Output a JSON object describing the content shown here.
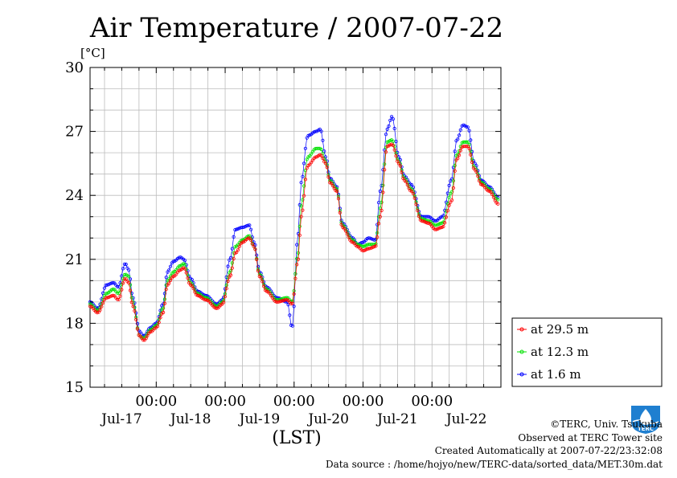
{
  "colors": {
    "series_29_5": "#ff0000",
    "series_12_3": "#00e000",
    "series_1_6": "#0000ff",
    "grid": "#bcbcbc",
    "logo": "#1f7fd0"
  },
  "logo": {
    "text": "TERC"
  },
  "credits": {
    "copyright": "©TERC, Univ. Tsukuba",
    "observed": "Observed at TERC Tower site",
    "created": "Created Automatically at 2007-07-22/23:32:08",
    "source": "Data source : /home/hojyo/new/TERC-data/sorted_data/MET.30m.dat"
  },
  "chart_data": {
    "type": "line",
    "title": "Air Temperature / 2007-07-22",
    "ylabel": "[°C]",
    "xlabel": "(LST)",
    "ylim": [
      15,
      30
    ],
    "yticks": [
      15,
      18,
      21,
      24,
      27,
      30
    ],
    "xlim": [
      -0.96,
      5.0
    ],
    "xticks": [
      0,
      1,
      2,
      3,
      4
    ],
    "xtick_labels": [
      "00:00",
      "00:00",
      "00:00",
      "00:00",
      "00:00"
    ],
    "date_labels": [
      "Jul-17",
      "Jul-18",
      "Jul-19",
      "Jul-20",
      "Jul-21",
      "Jul-22"
    ],
    "date_positions": [
      -0.5,
      0.5,
      1.5,
      2.5,
      3.5,
      4.5
    ],
    "x_unit": "days relative to Jul-18 00:00",
    "grid": true,
    "legend_position": "right",
    "series": [
      {
        "name": "at 29.5 m",
        "key": "series_29_5"
      },
      {
        "name": "at 12.3 m",
        "key": "series_12_3"
      },
      {
        "name": "at 1.6 m",
        "key": "series_1_6"
      }
    ],
    "keypoints_x": [
      -0.96,
      -0.85,
      -0.72,
      -0.62,
      -0.55,
      -0.45,
      -0.4,
      -0.34,
      -0.24,
      -0.18,
      -0.08,
      0,
      0.1,
      0.16,
      0.25,
      0.35,
      0.4,
      0.5,
      0.6,
      0.72,
      0.88,
      0.96,
      1.07,
      1.15,
      1.25,
      1.35,
      1.42,
      1.5,
      1.6,
      1.75,
      1.9,
      1.97,
      2.06,
      2.1,
      2.2,
      2.32,
      2.38,
      2.46,
      2.52,
      2.62,
      2.7,
      2.85,
      2.92,
      3.0,
      3.08,
      3.18,
      3.25,
      3.35,
      3.42,
      3.52,
      3.6,
      3.7,
      3.85,
      3.95,
      4.05,
      4.15,
      4.28,
      4.36,
      4.45,
      4.52,
      4.62,
      4.72,
      4.83,
      4.96
    ],
    "keypoints": {
      "series_29_5": [
        18.8,
        18.5,
        19.2,
        19.3,
        19.1,
        20.1,
        19.9,
        18.8,
        17.4,
        17.2,
        17.6,
        17.8,
        18.5,
        19.8,
        20.2,
        20.5,
        20.6,
        19.8,
        19.3,
        19.1,
        18.7,
        18.9,
        20.2,
        21.3,
        21.8,
        22.0,
        21.6,
        20.2,
        19.5,
        19.0,
        19.1,
        18.9,
        21.0,
        23.0,
        25.4,
        25.8,
        25.9,
        25.5,
        24.6,
        24.2,
        22.5,
        21.8,
        21.6,
        21.4,
        21.5,
        21.6,
        23.0,
        26.3,
        26.4,
        25.5,
        24.7,
        24.2,
        22.8,
        22.7,
        22.4,
        22.5,
        23.7,
        25.7,
        26.3,
        26.3,
        25.2,
        24.5,
        24.2,
        23.6
      ],
      "series_12_3": [
        18.9,
        18.6,
        19.4,
        19.6,
        19.4,
        20.3,
        20.2,
        19.0,
        17.4,
        17.3,
        17.7,
        17.9,
        18.7,
        20.0,
        20.4,
        20.7,
        20.8,
        19.9,
        19.4,
        19.2,
        18.8,
        19.0,
        20.4,
        21.6,
        21.9,
        22.1,
        21.6,
        20.3,
        19.6,
        19.1,
        19.2,
        19.0,
        21.3,
        23.5,
        25.8,
        26.2,
        26.2,
        25.6,
        24.7,
        24.3,
        22.6,
        21.9,
        21.7,
        21.6,
        21.7,
        21.7,
        23.4,
        26.5,
        26.6,
        25.6,
        24.8,
        24.3,
        22.9,
        22.8,
        22.6,
        22.7,
        24.1,
        25.9,
        26.5,
        26.5,
        25.3,
        24.6,
        24.3,
        23.8
      ],
      "series_1_6": [
        19.0,
        18.7,
        19.8,
        19.9,
        19.7,
        20.8,
        20.5,
        19.2,
        17.6,
        17.4,
        17.8,
        18.0,
        18.9,
        20.4,
        20.9,
        21.1,
        21.0,
        20.1,
        19.5,
        19.3,
        18.9,
        19.1,
        21.0,
        22.4,
        22.5,
        22.6,
        21.8,
        20.4,
        19.7,
        19.2,
        19.0,
        17.8,
        22.2,
        24.6,
        26.8,
        27.0,
        27.1,
        25.8,
        24.8,
        24.4,
        22.7,
        22.0,
        21.7,
        21.8,
        22.0,
        21.9,
        24.2,
        27.1,
        27.7,
        25.8,
        24.9,
        24.5,
        23.0,
        23.0,
        22.8,
        23.0,
        24.7,
        26.6,
        27.3,
        27.2,
        25.5,
        24.7,
        24.4,
        23.9
      ]
    }
  }
}
